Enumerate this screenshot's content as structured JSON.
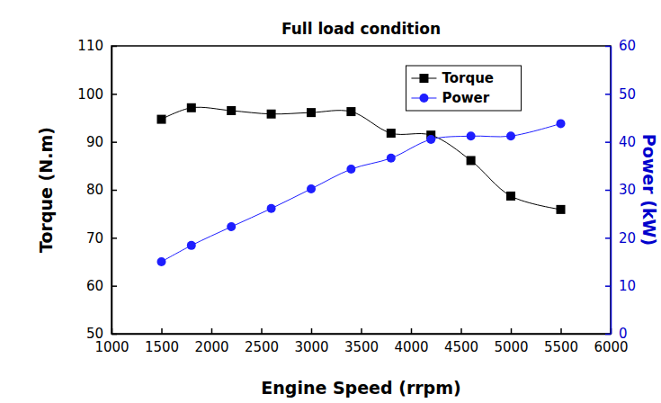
{
  "chart_data": {
    "type": "line",
    "title": "Full load condition",
    "x_label": "Engine Speed (rrpm)",
    "y_label": "Torque (N.m)",
    "y2_label": "Power (kW)",
    "x": [
      1500,
      1800,
      2200,
      2600,
      3000,
      3400,
      3800,
      4200,
      4600,
      5000,
      5500
    ],
    "series": [
      {
        "name": "Torque",
        "color": "#000000",
        "marker": "square",
        "line_style": "smooth",
        "axis": "y",
        "values": [
          94.7,
          97.1,
          96.5,
          95.8,
          96.1,
          96.3,
          91.8,
          91.4,
          86.1,
          78.7,
          75.9
        ]
      },
      {
        "name": "Power",
        "color": "#1e1eff",
        "marker": "circle",
        "line_style": "smooth",
        "axis": "y2",
        "values": [
          15.0,
          18.4,
          22.3,
          26.1,
          30.2,
          34.3,
          36.6,
          40.5,
          41.2,
          41.2,
          43.8
        ]
      }
    ],
    "xlim": [
      1000,
      6000
    ],
    "xticks": [
      1000,
      1500,
      2000,
      2500,
      3000,
      3500,
      4000,
      4500,
      5000,
      5500,
      6000
    ],
    "ylim": [
      50,
      110
    ],
    "yticks": [
      50,
      60,
      70,
      80,
      90,
      100,
      110
    ],
    "y2lim": [
      0,
      60
    ],
    "y2ticks": [
      0,
      10,
      20,
      30,
      40,
      50,
      60
    ],
    "grid": false,
    "legend": "top"
  }
}
